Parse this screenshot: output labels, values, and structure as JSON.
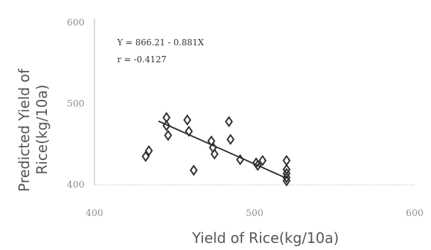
{
  "chart_data": {
    "type": "scatter",
    "title": "",
    "xlabel": "Yield of Rice(kg/10a)",
    "ylabel_lines": [
      "Predicted Yield of",
      "Rice(kg/10a)"
    ],
    "xlim": [
      400,
      600
    ],
    "ylim": [
      400,
      600
    ],
    "x_ticks": [
      "400",
      "500",
      "600"
    ],
    "y_ticks": [
      "400",
      "500",
      "600"
    ],
    "annotation_lines": [
      "Y = 866.21 - 0.881X",
      "r = -0.4127"
    ],
    "trendline": {
      "label": "Y = 866.21 - 0.881X",
      "slope": -0.881,
      "intercept": 866.21,
      "x_start": 440,
      "x_end": 520
    },
    "points": [
      {
        "x": 432,
        "y": 435
      },
      {
        "x": 434,
        "y": 442
      },
      {
        "x": 445,
        "y": 483
      },
      {
        "x": 445,
        "y": 473
      },
      {
        "x": 446,
        "y": 461
      },
      {
        "x": 458,
        "y": 480
      },
      {
        "x": 459,
        "y": 466
      },
      {
        "x": 462,
        "y": 418
      },
      {
        "x": 473,
        "y": 454
      },
      {
        "x": 474,
        "y": 446
      },
      {
        "x": 475,
        "y": 438
      },
      {
        "x": 484,
        "y": 478
      },
      {
        "x": 485,
        "y": 456
      },
      {
        "x": 491,
        "y": 431
      },
      {
        "x": 501,
        "y": 427
      },
      {
        "x": 502,
        "y": 424
      },
      {
        "x": 505,
        "y": 430
      },
      {
        "x": 520,
        "y": 430
      },
      {
        "x": 520,
        "y": 419
      },
      {
        "x": 520,
        "y": 414
      },
      {
        "x": 520,
        "y": 409
      },
      {
        "x": 520,
        "y": 405
      }
    ]
  }
}
